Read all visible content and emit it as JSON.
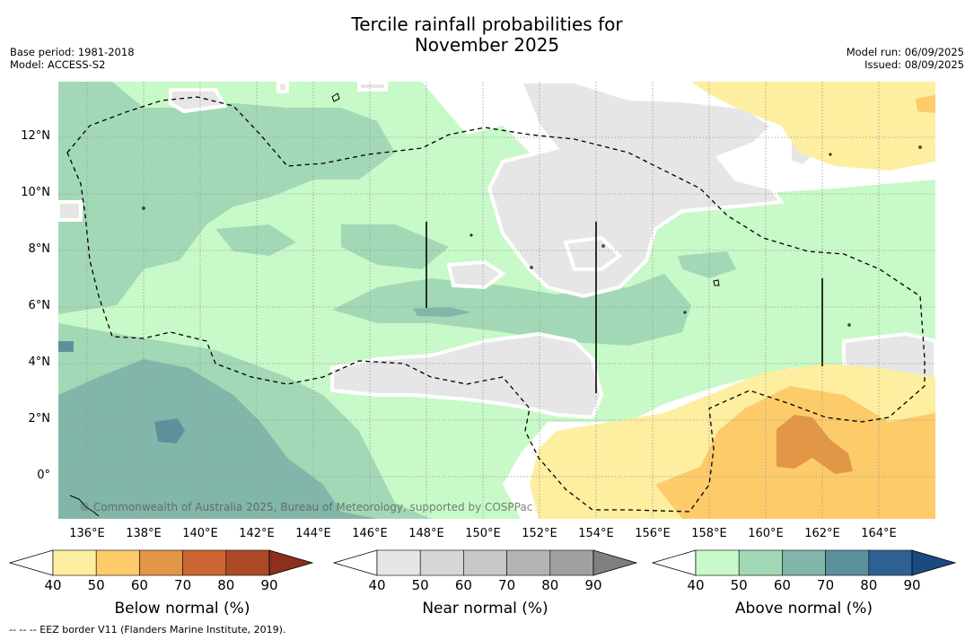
{
  "title_line1": "Tercile rainfall probabilities for",
  "title_line2": "November 2025",
  "base_period": "Base period: 1981-2018",
  "model": "Model: ACCESS-S2",
  "model_run": "Model run: 06/09/2025",
  "issued": "Issued: 08/09/2025",
  "copyright": "© Commonwealth of Australia 2025, Bureau of Meteorology, supported by COSPPac",
  "footnote": "--  --  -- EEZ border V11 (Flanders Marine Institute, 2019).",
  "x_ticks": [
    "136°E",
    "138°E",
    "140°E",
    "142°E",
    "144°E",
    "146°E",
    "148°E",
    "150°E",
    "152°E",
    "154°E",
    "156°E",
    "158°E",
    "160°E",
    "162°E",
    "164°E"
  ],
  "y_ticks": [
    "12°N",
    "10°N",
    "8°N",
    "6°N",
    "4°N",
    "2°N",
    "0°"
  ],
  "colorbars": [
    {
      "label": "Below normal (%)",
      "ticks": [
        "40",
        "50",
        "60",
        "70",
        "80",
        "90"
      ],
      "colors": [
        "#ffffff",
        "#fdeea0",
        "#fdcb6a",
        "#e19746",
        "#cd6533",
        "#ac4a27",
        "#8b2f1e"
      ]
    },
    {
      "label": "Near normal (%)",
      "ticks": [
        "40",
        "50",
        "60",
        "70",
        "80",
        "90"
      ],
      "colors": [
        "#ffffff",
        "#e6e6e6",
        "#d6d6d6",
        "#c8c8c8",
        "#b4b4b4",
        "#a0a0a0",
        "#7f7f7f"
      ]
    },
    {
      "label": "Above normal (%)",
      "ticks": [
        "40",
        "50",
        "60",
        "70",
        "80",
        "90"
      ],
      "colors": [
        "#ffffff",
        "#c8f9c8",
        "#a3d8b6",
        "#82b6aa",
        "#5c919c",
        "#2f6193",
        "#1b4a80"
      ]
    }
  ]
}
